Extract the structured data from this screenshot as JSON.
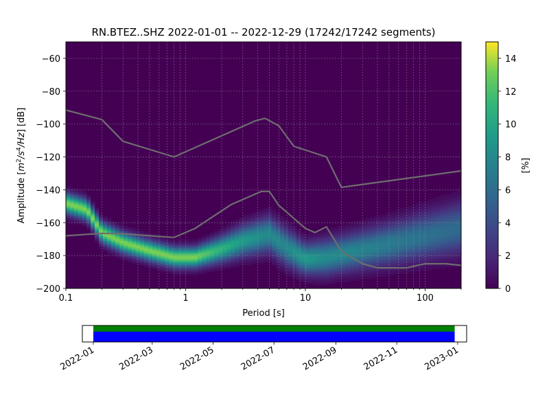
{
  "chart_data": {
    "type": "heatmap",
    "title": "RN.BTEZ..SHZ   2022-01-01 -- 2022-12-29  (17242/17242 segments)",
    "xlabel": "Period [s]",
    "ylabel": "Amplitude [m²/s⁴/Hz] [dB]",
    "ylabel_parts": {
      "pre": "Amplitude [",
      "m": "m",
      "sup2": "2",
      "slash_s": "/s",
      "sup4": "4",
      "hz": "/Hz",
      "post": "] [dB]"
    },
    "x_scale": "log",
    "xlim": [
      0.1,
      200
    ],
    "ylim": [
      -200,
      -50
    ],
    "grid": true,
    "x_ticks": [
      0.1,
      1,
      10,
      100
    ],
    "x_tick_labels": [
      "0.1",
      "1",
      "10",
      "100"
    ],
    "y_ticks": [
      -60,
      -80,
      -100,
      -120,
      -140,
      -160,
      -180,
      -200
    ],
    "y_tick_labels": [
      "−60",
      "−80",
      "−100",
      "−120",
      "−140",
      "−160",
      "−180",
      "−200"
    ],
    "colorbar": {
      "label": "[%]",
      "range": [
        0,
        15
      ],
      "ticks": [
        0,
        2,
        4,
        6,
        8,
        10,
        12,
        14
      ],
      "tick_labels": [
        "0",
        "2",
        "4",
        "6",
        "8",
        "10",
        "12",
        "14"
      ],
      "colormap": "viridis"
    },
    "density_ridge": [
      {
        "period": 0.1,
        "amp": -148,
        "spread": 4
      },
      {
        "period": 0.15,
        "amp": -152,
        "spread": 4
      },
      {
        "period": 0.2,
        "amp": -166,
        "spread": 4
      },
      {
        "period": 0.3,
        "amp": -172,
        "spread": 4
      },
      {
        "period": 0.5,
        "amp": -177,
        "spread": 4
      },
      {
        "period": 0.8,
        "amp": -181,
        "spread": 4
      },
      {
        "period": 1.2,
        "amp": -181,
        "spread": 4
      },
      {
        "period": 2,
        "amp": -176,
        "spread": 5
      },
      {
        "period": 3,
        "amp": -171,
        "spread": 6
      },
      {
        "period": 5,
        "amp": -167,
        "spread": 7
      },
      {
        "period": 7,
        "amp": -175,
        "spread": 7
      },
      {
        "period": 10,
        "amp": -182,
        "spread": 6
      },
      {
        "period": 15,
        "amp": -181,
        "spread": 7
      },
      {
        "period": 20,
        "amp": -179,
        "spread": 7
      },
      {
        "period": 50,
        "amp": -173,
        "spread": 8
      },
      {
        "period": 100,
        "amp": -168,
        "spread": 9
      },
      {
        "period": 200,
        "amp": -163,
        "spread": 10
      }
    ],
    "series": [
      {
        "x": [
          0.1,
          0.2,
          0.3,
          0.8,
          3.8,
          4.6,
          6,
          8,
          15,
          20,
          200
        ],
        "y": [
          -91.5,
          -97.3,
          -110.5,
          -120,
          -98.1,
          -96.5,
          -101,
          -113.5,
          -120,
          -138.5,
          -128.5
        ]
      },
      {
        "x": [
          0.1,
          0.2,
          0.3,
          0.8,
          1.2,
          2.4,
          4.3,
          5,
          6,
          10,
          12,
          15,
          20,
          30,
          40,
          70,
          100,
          150,
          200
        ],
        "y": [
          -168,
          -166.5,
          -166.8,
          -169,
          -163.5,
          -149,
          -141,
          -141,
          -149.5,
          -163.5,
          -166,
          -162.5,
          -177.5,
          -185,
          -187.5,
          -187.5,
          -185,
          -185,
          -186
        ]
      }
    ],
    "model_line_color": "#6e6e6e",
    "time_axis": {
      "range": [
        "2021-12-21",
        "2023-01-10"
      ],
      "coverage": [
        "2022-01-01",
        "2022-12-29"
      ],
      "tick_labels": [
        "2022-01",
        "2022-03",
        "2022-05",
        "2022-07",
        "2022-09",
        "2022-11",
        "2023-01"
      ],
      "ticks": [
        "2022-01-01",
        "2022-03-01",
        "2022-05-01",
        "2022-07-01",
        "2022-09-01",
        "2022-11-01",
        "2023-01-01"
      ],
      "colors": [
        "#008000",
        "#0000ff"
      ]
    }
  }
}
